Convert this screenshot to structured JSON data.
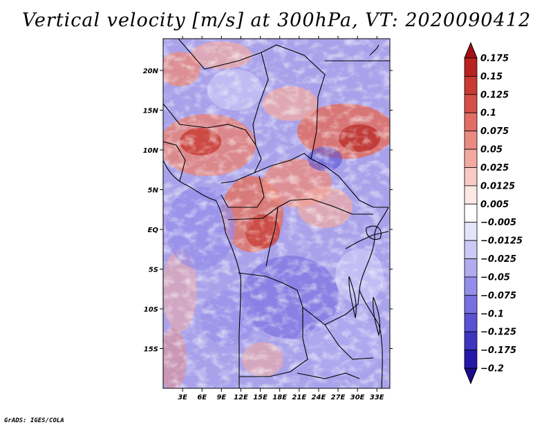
{
  "title": "Vertical velocity [m/s] at 300hPa, VT: 2020090412",
  "footer": "GrADS: IGES/COLA",
  "map": {
    "field": "Vertical velocity",
    "units": "m/s",
    "level": "300hPa",
    "valid_time": "2020090412",
    "lon_range": [
      0,
      35
    ],
    "lat_range": [
      -20,
      24
    ],
    "lon_ticks": [
      {
        "value": 3,
        "label": "3E"
      },
      {
        "value": 6,
        "label": "6E"
      },
      {
        "value": 9,
        "label": "9E"
      },
      {
        "value": 12,
        "label": "12E"
      },
      {
        "value": 15,
        "label": "15E"
      },
      {
        "value": 18,
        "label": "18E"
      },
      {
        "value": 21,
        "label": "21E"
      },
      {
        "value": 24,
        "label": "24E"
      },
      {
        "value": 27,
        "label": "27E"
      },
      {
        "value": 30,
        "label": "30E"
      },
      {
        "value": 33,
        "label": "33E"
      }
    ],
    "lat_ticks": [
      {
        "value": 20,
        "label": "20N"
      },
      {
        "value": 15,
        "label": "15N"
      },
      {
        "value": 10,
        "label": "10N"
      },
      {
        "value": 5,
        "label": "5N"
      },
      {
        "value": 0,
        "label": "EQ"
      },
      {
        "value": -5,
        "label": "5S"
      },
      {
        "value": -10,
        "label": "10S"
      },
      {
        "value": -15,
        "label": "15S"
      }
    ]
  },
  "colorbar": {
    "levels": [
      "0.175",
      "0.15",
      "0.125",
      "0.1",
      "0.075",
      "0.05",
      "0.025",
      "0.0125",
      "0.005",
      "−0.005",
      "−0.0125",
      "−0.025",
      "−0.05",
      "−0.075",
      "−0.1",
      "−0.125",
      "−0.175",
      "−0.2"
    ],
    "colors": [
      "#a50f15",
      "#b8231f",
      "#c83a32",
      "#d65047",
      "#e06e63",
      "#e98b80",
      "#f2aaa0",
      "#f8cbc4",
      "#fce8e4",
      "#ffffff",
      "#e6e4fb",
      "#cdc9f6",
      "#b1abf0",
      "#948de9",
      "#7870df",
      "#5a52d2",
      "#3d35c0",
      "#2518a8",
      "#1a0c8c"
    ]
  }
}
